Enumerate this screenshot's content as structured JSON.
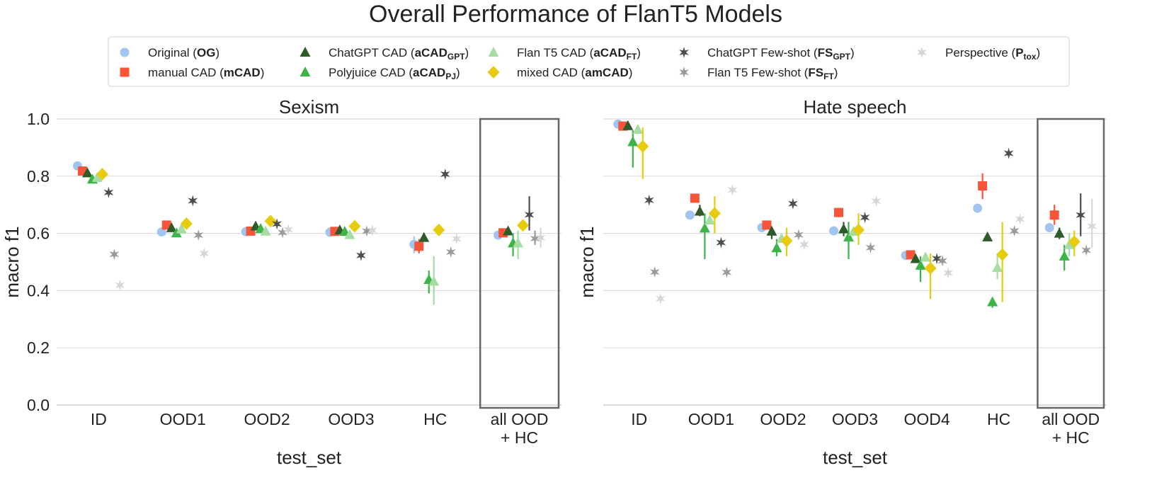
{
  "figure": {
    "title": "Overall Performance of FlanT5 Models"
  },
  "legend": [
    {
      "key": "OG",
      "label": "Original (",
      "bold": "OG",
      "sub": "",
      "end": ")",
      "marker": "circle",
      "color": "#a1c4f0"
    },
    {
      "key": "mCAD",
      "label": "manual CAD (",
      "bold": "mCAD",
      "sub": "",
      "end": ")",
      "marker": "square",
      "color": "#f7553a"
    },
    {
      "key": "aCADGPT",
      "label": "ChatGPT CAD (",
      "bold": "aCAD",
      "sub": "GPT",
      "end": ")",
      "marker": "triangle",
      "color": "#2f5a2a"
    },
    {
      "key": "aCADPJ",
      "label": "Polyjuice CAD (",
      "bold": "aCAD",
      "sub": "PJ",
      "end": ")",
      "marker": "triangle",
      "color": "#3cb448"
    },
    {
      "key": "aCADFT",
      "label": "Flan T5 CAD (",
      "bold": "aCAD",
      "sub": "FT",
      "end": ")",
      "marker": "triangle",
      "color": "#a7dca4"
    },
    {
      "key": "amCAD",
      "label": "mixed CAD (",
      "bold": "amCAD",
      "sub": "",
      "end": ")",
      "marker": "diamond",
      "color": "#e7cc0e"
    },
    {
      "key": "FSGPT",
      "label": "ChatGPT Few-shot (",
      "bold": "FS",
      "sub": "GPT",
      "end": ")",
      "marker": "star",
      "color": "#4d4d4d"
    },
    {
      "key": "FSFT",
      "label": "Flan T5 Few-shot (",
      "bold": "FS",
      "sub": "FT",
      "end": ")",
      "marker": "star",
      "color": "#9a9a9a"
    },
    {
      "key": "Ptox",
      "label": "Perspective (",
      "bold": "P",
      "sub": "tox",
      "end": ")",
      "marker": "star",
      "color": "#d6d6d6"
    }
  ],
  "chart_data": [
    {
      "type": "scatter",
      "title": "Sexism",
      "xlabel": "test_set",
      "ylabel": "macro f1",
      "ylim": [
        0.0,
        1.0
      ],
      "yticks": [
        "0.0",
        "0.2",
        "0.4",
        "0.6",
        "0.8",
        "1.0"
      ],
      "categories": [
        "ID",
        "OOD1",
        "OOD2",
        "OOD3",
        "HC",
        "all OOD\n+ HC"
      ],
      "highlight_category": "all OOD\n+ HC",
      "grid": "horizontal",
      "series": [
        {
          "name": "OG",
          "values": [
            0.836,
            0.605,
            0.606,
            0.604,
            0.562,
            0.594
          ],
          "err": [
            null,
            null,
            null,
            null,
            [
              0.53,
              0.59
            ],
            null
          ]
        },
        {
          "name": "mCAD",
          "values": [
            0.818,
            0.629,
            0.608,
            0.607,
            0.555,
            0.602
          ],
          "err": [
            null,
            null,
            null,
            null,
            [
              0.53,
              0.58
            ],
            null
          ]
        },
        {
          "name": "aCADGPT",
          "values": [
            0.811,
            0.619,
            0.625,
            0.611,
            0.585,
            0.608
          ],
          "err": [
            null,
            null,
            null,
            null,
            null,
            null
          ]
        },
        {
          "name": "aCADPJ",
          "values": [
            0.789,
            0.601,
            0.616,
            0.606,
            0.438,
            0.566
          ],
          "err": [
            null,
            null,
            null,
            null,
            [
              0.39,
              0.47
            ],
            [
              0.52,
              0.6
            ]
          ]
        },
        {
          "name": "aCADFT",
          "values": [
            0.795,
            0.615,
            0.607,
            0.595,
            0.432,
            0.566
          ],
          "err": [
            null,
            null,
            null,
            null,
            [
              0.35,
              0.52
            ],
            [
              0.51,
              0.61
            ]
          ]
        },
        {
          "name": "amCAD",
          "values": [
            0.807,
            0.634,
            0.643,
            0.625,
            0.612,
            0.628
          ],
          "err": [
            null,
            null,
            null,
            null,
            null,
            null
          ]
        },
        {
          "name": "FSGPT",
          "values": [
            0.743,
            0.714,
            0.633,
            0.523,
            0.807,
            0.665
          ],
          "err": [
            null,
            null,
            null,
            null,
            null,
            [
              0.61,
              0.73
            ]
          ]
        },
        {
          "name": "FSFT",
          "values": [
            0.527,
            0.594,
            0.603,
            0.608,
            0.535,
            0.582
          ],
          "err": [
            null,
            null,
            null,
            null,
            null,
            [
              0.56,
              0.61
            ]
          ]
        },
        {
          "name": "Ptox",
          "values": [
            0.419,
            0.53,
            0.613,
            0.611,
            0.581,
            0.585
          ],
          "err": [
            null,
            null,
            null,
            null,
            null,
            [
              0.55,
              0.62
            ]
          ]
        }
      ]
    },
    {
      "type": "scatter",
      "title": "Hate speech",
      "xlabel": "test_set",
      "ylabel": "macro f1",
      "ylim": [
        0.0,
        1.0
      ],
      "yticks": [
        "0.0",
        "0.2",
        "0.4",
        "0.6",
        "0.8",
        "1.0"
      ],
      "categories": [
        "ID",
        "OOD1",
        "OOD2",
        "OOD3",
        "OOD4",
        "HC",
        "all OOD\n+ HC"
      ],
      "highlight_category": "all OOD\n+ HC",
      "grid": "horizontal",
      "series": [
        {
          "name": "OG",
          "values": [
            0.982,
            0.664,
            0.62,
            0.609,
            0.523,
            0.688,
            0.62
          ],
          "err": [
            null,
            null,
            null,
            null,
            null,
            null,
            null
          ]
        },
        {
          "name": "mCAD",
          "values": [
            0.975,
            0.723,
            0.629,
            0.673,
            0.525,
            0.766,
            0.664
          ],
          "err": [
            null,
            null,
            null,
            null,
            null,
            [
              0.72,
              0.81
            ],
            [
              0.63,
              0.7
            ]
          ]
        },
        {
          "name": "aCADGPT",
          "values": [
            0.976,
            0.677,
            0.607,
            0.615,
            0.511,
            0.587,
            0.6
          ],
          "err": [
            null,
            [
              0.66,
              0.7
            ],
            [
              0.58,
              0.62
            ],
            [
              0.59,
              0.64
            ],
            null,
            null,
            [
              0.58,
              0.62
            ]
          ]
        },
        {
          "name": "aCADPJ",
          "values": [
            0.92,
            0.618,
            0.549,
            0.587,
            0.488,
            0.36,
            0.52
          ],
          "err": [
            [
              0.83,
              0.96
            ],
            [
              0.51,
              0.67
            ],
            [
              0.52,
              0.58
            ],
            [
              0.51,
              0.64
            ],
            [
              0.43,
              0.52
            ],
            [
              0.34,
              0.37
            ],
            [
              0.47,
              0.56
            ]
          ]
        },
        {
          "name": "aCADFT",
          "values": [
            0.963,
            0.646,
            0.582,
            0.606,
            0.516,
            0.48,
            0.56
          ],
          "err": [
            null,
            null,
            null,
            null,
            null,
            [
              0.44,
              0.53
            ],
            [
              0.52,
              0.6
            ]
          ]
        },
        {
          "name": "amCAD",
          "values": [
            0.904,
            0.67,
            0.574,
            0.612,
            0.478,
            0.526,
            0.571
          ],
          "err": [
            [
              0.79,
              0.97
            ],
            [
              0.6,
              0.73
            ],
            [
              0.52,
              0.62
            ],
            [
              0.56,
              0.67
            ],
            [
              0.37,
              0.53
            ],
            [
              0.36,
              0.64
            ],
            [
              0.52,
              0.61
            ]
          ]
        },
        {
          "name": "FSGPT",
          "values": [
            0.716,
            0.568,
            0.704,
            0.656,
            0.512,
            0.88,
            0.664
          ],
          "err": [
            null,
            null,
            null,
            null,
            null,
            null,
            [
              0.59,
              0.74
            ]
          ]
        },
        {
          "name": "FSFT",
          "values": [
            0.465,
            0.464,
            0.595,
            0.55,
            0.504,
            0.609,
            0.541
          ],
          "err": [
            null,
            null,
            null,
            null,
            null,
            null,
            null
          ]
        },
        {
          "name": "Ptox",
          "values": [
            0.372,
            0.752,
            0.561,
            0.713,
            0.462,
            0.65,
            0.625
          ],
          "err": [
            null,
            null,
            null,
            null,
            null,
            null,
            [
              0.55,
              0.72
            ]
          ]
        }
      ]
    }
  ]
}
